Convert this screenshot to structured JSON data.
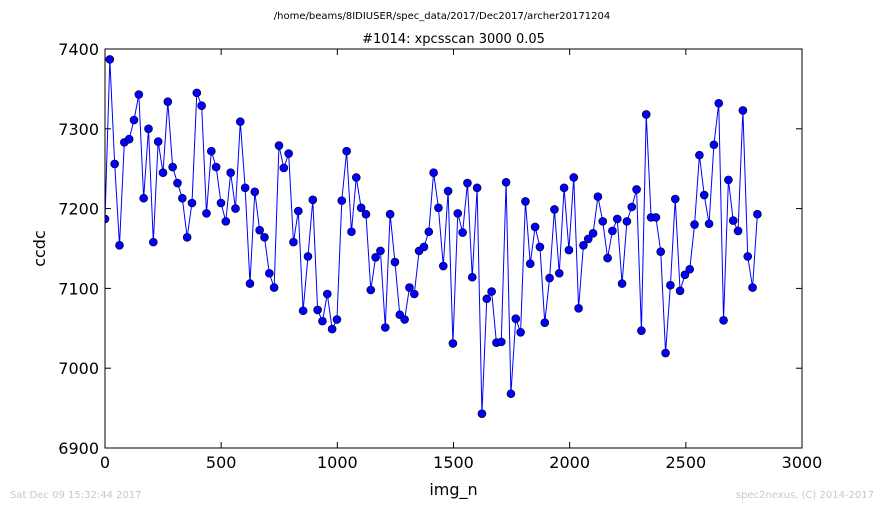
{
  "header": {
    "path": "/home/beams/8IDIUSER/spec_data/2017/Dec2017/archer20171204"
  },
  "footer": {
    "timestamp": "Sat Dec 09 15:32:44 2017",
    "credit": "spec2nexus, (C) 2014-2017"
  },
  "colors": {
    "series": "#0000ff"
  },
  "chart_data": {
    "type": "line",
    "title": "#1014: xpcsscan 3000 0.05",
    "xlabel": "img_n",
    "ylabel": "ccdc",
    "xlim": [
      0,
      3000
    ],
    "ylim": [
      6900,
      7400
    ],
    "x_ticks": [
      0,
      500,
      1000,
      1500,
      2000,
      2500,
      3000
    ],
    "y_ticks": [
      6900,
      7000,
      7100,
      7200,
      7300,
      7400
    ],
    "x_tick_labels": [
      "0",
      "500",
      "1000",
      "1500",
      "2000",
      "2500",
      "3000"
    ],
    "y_tick_labels": [
      "6900",
      "7000",
      "7100",
      "7200",
      "7300",
      "7400"
    ],
    "grid": false,
    "legend": false,
    "series": [
      {
        "x_start": 0,
        "x_step": 20.8,
        "values": [
          7187,
          7387,
          7256,
          7154,
          7283,
          7287,
          7311,
          7343,
          7213,
          7300,
          7158,
          7284,
          7245,
          7334,
          7252,
          7232,
          7213,
          7164,
          7207,
          7345,
          7329,
          7194,
          7272,
          7252,
          7207,
          7184,
          7245,
          7200,
          7309,
          7226,
          7106,
          7221,
          7173,
          7164,
          7119,
          7101,
          7279,
          7251,
          7269,
          7158,
          7197,
          7072,
          7140,
          7211,
          7073,
          7059,
          7093,
          7049,
          7061,
          7210,
          7272,
          7171,
          7239,
          7201,
          7193,
          7098,
          7139,
          7147,
          7051,
          7193,
          7133,
          7067,
          7061,
          7101,
          7093,
          7147,
          7152,
          7171,
          7245,
          7201,
          7128,
          7222,
          7031,
          7194,
          7170,
          7232,
          7114,
          7226,
          6943,
          7087,
          7096,
          7032,
          7033,
          7233,
          6968,
          7062,
          7045,
          7209,
          7131,
          7177,
          7152,
          7057,
          7113,
          7199,
          7119,
          7226,
          7148,
          7239,
          7075,
          7154,
          7162,
          7169,
          7215,
          7184,
          7138,
          7172,
          7187,
          7106,
          7184,
          7202,
          7224,
          7047,
          7318,
          7189,
          7189,
          7146,
          7019,
          7104,
          7212,
          7097,
          7117,
          7124,
          7180,
          7267,
          7217,
          7181,
          7280,
          7332,
          7060,
          7236,
          7185,
          7172,
          7323,
          7140,
          7101,
          7193
        ]
      }
    ]
  }
}
